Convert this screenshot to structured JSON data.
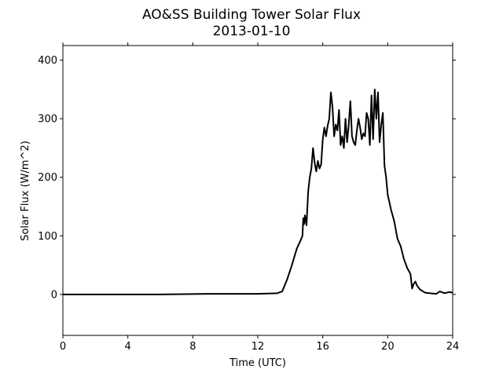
{
  "chart_data": {
    "type": "line",
    "title": "AO&SS Building Tower Solar Flux",
    "subtitle": "2013-01-10",
    "xlabel": "Time (UTC)",
    "ylabel": "Solar Flux (W/m^2)",
    "xlim": [
      0,
      24
    ],
    "ylim": [
      -70,
      425
    ],
    "xticks": [
      0,
      4,
      8,
      12,
      16,
      20,
      24
    ],
    "yticks": [
      0,
      100,
      200,
      300,
      400
    ],
    "grid": false,
    "line_color": "#000000",
    "series": [
      {
        "x": [
          0,
          6,
          9,
          12,
          13.2,
          13.5,
          13.8,
          14.1,
          14.4,
          14.6,
          14.75,
          14.8,
          14.85,
          14.9,
          15.0,
          15.1,
          15.2,
          15.3,
          15.4,
          15.5,
          15.6,
          15.7,
          15.8,
          15.9,
          16.0,
          16.1,
          16.2,
          16.3,
          16.4,
          16.5,
          16.6,
          16.7,
          16.8,
          16.9,
          17.0,
          17.1,
          17.2,
          17.3,
          17.4,
          17.5,
          17.6,
          17.7,
          17.8,
          17.9,
          18.0,
          18.1,
          18.2,
          18.3,
          18.4,
          18.5,
          18.6,
          18.7,
          18.8,
          18.9,
          19.0,
          19.1,
          19.2,
          19.3,
          19.4,
          19.5,
          19.6,
          19.7,
          19.8,
          19.9,
          20.0,
          20.1,
          20.2,
          20.4,
          20.6,
          20.8,
          21.0,
          21.2,
          21.4,
          21.5,
          21.6,
          21.7,
          21.8,
          22.0,
          22.3,
          22.6,
          23.0,
          23.2,
          23.5,
          23.8,
          24.0
        ],
        "y": [
          0,
          0,
          1,
          1,
          2,
          5,
          25,
          50,
          78,
          90,
          100,
          130,
          120,
          135,
          118,
          175,
          200,
          215,
          250,
          225,
          210,
          228,
          215,
          222,
          265,
          285,
          270,
          288,
          300,
          345,
          320,
          270,
          290,
          280,
          315,
          255,
          270,
          250,
          300,
          260,
          290,
          330,
          270,
          260,
          255,
          280,
          300,
          285,
          265,
          275,
          270,
          310,
          300,
          255,
          340,
          265,
          350,
          300,
          345,
          260,
          290,
          310,
          220,
          200,
          170,
          158,
          145,
          125,
          95,
          82,
          60,
          45,
          35,
          10,
          18,
          22,
          15,
          8,
          3,
          2,
          1,
          5,
          2,
          4,
          3
        ]
      }
    ]
  }
}
